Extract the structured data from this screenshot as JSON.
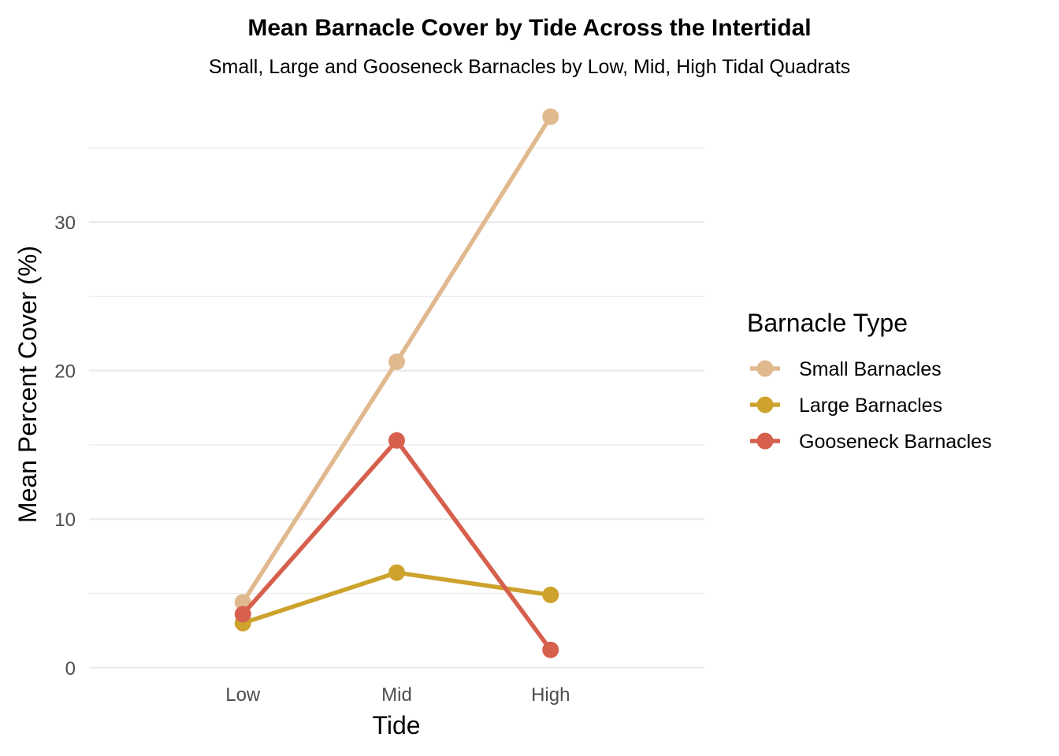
{
  "chart_data": {
    "type": "line",
    "title": "Mean Barnacle Cover by Tide Across the Intertidal",
    "subtitle": "Small, Large and Gooseneck Barnacles by Low, Mid, High Tidal Quadrats",
    "xlabel": "Tide",
    "ylabel": "Mean Percent Cover (%)",
    "categories": [
      "Low",
      "Mid",
      "High"
    ],
    "ylim": [
      -1.6,
      38.7
    ],
    "y_ticks": [
      0,
      10,
      20,
      30
    ],
    "y_tick_labels": [
      "0",
      "10",
      "20",
      "30"
    ],
    "y_minor_ticks": [
      5,
      15,
      25,
      35
    ],
    "grid": true,
    "legend": {
      "title": "Barnacle Type",
      "placement": "right"
    },
    "series": [
      {
        "name": "Small Barnacles",
        "color": "#E1B98E",
        "values": [
          4.4,
          20.6,
          37.1
        ]
      },
      {
        "name": "Large Barnacles",
        "color": "#CDA32E",
        "values": [
          3.0,
          6.4,
          4.9
        ]
      },
      {
        "name": "Gooseneck Barnacles",
        "color": "#D6604D",
        "values": [
          3.6,
          15.3,
          1.2
        ]
      }
    ]
  }
}
